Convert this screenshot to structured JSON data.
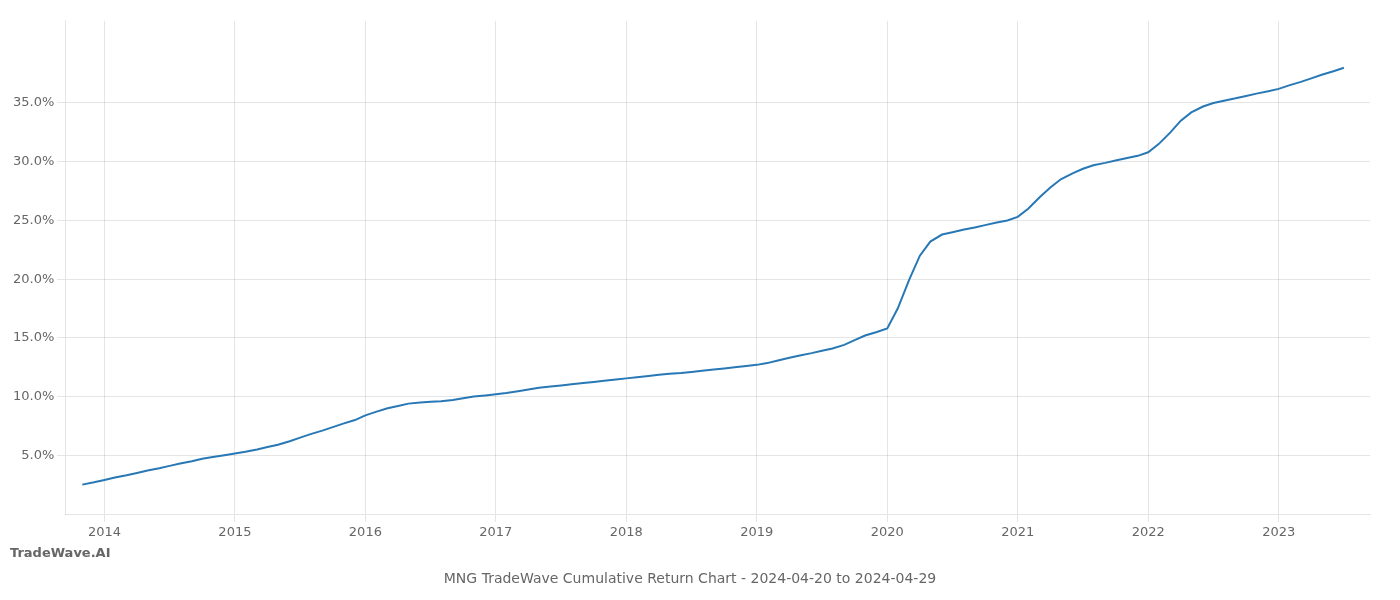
{
  "chart_data": {
    "type": "line",
    "title": "MNG TradeWave Cumulative Return Chart - 2024-04-20 to 2024-04-29",
    "annotations": [
      "TradeWave.AI"
    ],
    "color": "#2878b5",
    "grid": true,
    "x": [
      2013.83,
      2013.92,
      2014.0,
      2014.08,
      2014.17,
      2014.25,
      2014.33,
      2014.42,
      2014.5,
      2014.58,
      2014.67,
      2014.75,
      2014.83,
      2014.92,
      2015.0,
      2015.08,
      2015.17,
      2015.25,
      2015.33,
      2015.42,
      2015.5,
      2015.58,
      2015.67,
      2015.75,
      2015.83,
      2015.92,
      2016.0,
      2016.08,
      2016.17,
      2016.25,
      2016.33,
      2016.42,
      2016.5,
      2016.58,
      2016.67,
      2016.75,
      2016.83,
      2016.92,
      2017.0,
      2017.08,
      2017.17,
      2017.25,
      2017.33,
      2017.42,
      2017.5,
      2017.58,
      2017.67,
      2017.75,
      2017.83,
      2017.92,
      2018.0,
      2018.08,
      2018.17,
      2018.25,
      2018.33,
      2018.42,
      2018.5,
      2018.58,
      2018.67,
      2018.75,
      2018.83,
      2018.92,
      2019.0,
      2019.08,
      2019.17,
      2019.25,
      2019.33,
      2019.42,
      2019.5,
      2019.58,
      2019.67,
      2019.75,
      2019.83,
      2019.92,
      2020.0,
      2020.08,
      2020.17,
      2020.25,
      2020.33,
      2020.42,
      2020.5,
      2020.58,
      2020.67,
      2020.75,
      2020.83,
      2020.92,
      2021.0,
      2021.08,
      2021.17,
      2021.25,
      2021.33,
      2021.42,
      2021.5,
      2021.58,
      2021.67,
      2021.75,
      2021.83,
      2021.92,
      2022.0,
      2022.08,
      2022.17,
      2022.25,
      2022.33,
      2022.42,
      2022.5,
      2022.58,
      2022.67,
      2022.75,
      2022.83,
      2022.92,
      2023.0,
      2023.08,
      2023.17,
      2023.25,
      2023.33,
      2023.42,
      2023.5
    ],
    "values": [
      2.5,
      2.7,
      2.9,
      3.1,
      3.3,
      3.5,
      3.7,
      3.9,
      4.1,
      4.3,
      4.5,
      4.7,
      4.85,
      5.0,
      5.15,
      5.3,
      5.5,
      5.7,
      5.9,
      6.2,
      6.5,
      6.8,
      7.1,
      7.4,
      7.7,
      8.0,
      8.4,
      8.7,
      9.0,
      9.2,
      9.4,
      9.5,
      9.55,
      9.6,
      9.7,
      9.85,
      10.0,
      10.1,
      10.2,
      10.3,
      10.45,
      10.6,
      10.75,
      10.85,
      10.95,
      11.05,
      11.15,
      11.25,
      11.35,
      11.45,
      11.55,
      11.65,
      11.75,
      11.85,
      11.95,
      12.0,
      12.1,
      12.2,
      12.3,
      12.4,
      12.5,
      12.6,
      12.7,
      12.85,
      13.1,
      13.3,
      13.5,
      13.7,
      13.9,
      14.1,
      14.4,
      14.8,
      15.2,
      15.5,
      15.8,
      17.5,
      20.0,
      22.0,
      23.2,
      23.8,
      24.0,
      24.2,
      24.4,
      24.6,
      24.8,
      25.0,
      25.3,
      26.0,
      27.0,
      27.8,
      28.5,
      29.0,
      29.4,
      29.7,
      29.9,
      30.1,
      30.3,
      30.5,
      30.8,
      31.5,
      32.5,
      33.5,
      34.2,
      34.7,
      35.0,
      35.2,
      35.4,
      35.6,
      35.8,
      36.0,
      36.2,
      36.5,
      36.8,
      37.1,
      37.4,
      37.7,
      38.0
    ],
    "xlim": [
      2013.7,
      2023.7
    ],
    "xticks": [
      2014,
      2015,
      2016,
      2017,
      2018,
      2019,
      2020,
      2021,
      2022,
      2023
    ],
    "ylim": [
      0,
      42
    ],
    "yticks": [
      {
        "value": 5.0,
        "label": "5.0%"
      },
      {
        "value": 10.0,
        "label": "10.0%"
      },
      {
        "value": 15.0,
        "label": "15.0%"
      },
      {
        "value": 20.0,
        "label": "20.0%"
      },
      {
        "value": 25.0,
        "label": "25.0%"
      },
      {
        "value": 30.0,
        "label": "30.0%"
      },
      {
        "value": 35.0,
        "label": "35.0%"
      }
    ]
  }
}
